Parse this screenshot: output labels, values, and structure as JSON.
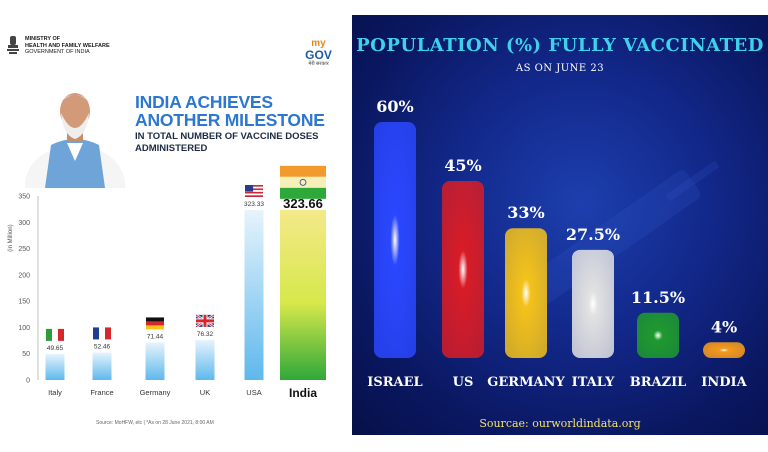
{
  "left": {
    "ministry_lines": [
      "MINISTRY OF",
      "HEALTH AND FAMILY WELFARE",
      "GOVERNMENT OF INDIA"
    ],
    "logo": {
      "top": "my",
      "bottom": "GOV",
      "hindi": "मेरी सरकार"
    },
    "headline": "INDIA ACHIEVES ANOTHER MILESTONE",
    "subline": "IN TOTAL NUMBER OF VACCINE DOSES ADMINISTERED",
    "footer": "Source: MoHFW, etc   |   *As on 28 June 2021, 8:00 AM"
  },
  "right": {
    "title": "POPULATION (%) FULLY VACCINATED",
    "subtitle": "AS ON JUNE 23",
    "source": "Sourcae: ourworldindata.org"
  },
  "chart_data": [
    {
      "type": "bar",
      "title": "INDIA ACHIEVES ANOTHER MILESTONE",
      "ylabel": "(in Million)",
      "ylim": [
        0,
        350
      ],
      "yticks": [
        0,
        50,
        100,
        150,
        200,
        250,
        300,
        350
      ],
      "categories": [
        "Italy",
        "France",
        "Germany",
        "UK",
        "USA",
        "India"
      ],
      "values": [
        49.65,
        52.46,
        71.44,
        76.32,
        323.33,
        323.66
      ],
      "value_labels": [
        "49.65",
        "52.46",
        "71.44",
        "76.32",
        "323.33",
        "323.66"
      ],
      "highlight": "India",
      "colors": {
        "bar": "#5fb8ec",
        "india_top": "#f39a2c",
        "india_mid": "#f6f0b8",
        "india_bottom": "#2fa83a"
      }
    },
    {
      "type": "bar",
      "title": "POPULATION (%) FULLY VACCINATED",
      "subtitle": "AS ON JUNE 23",
      "ylim": [
        0,
        60
      ],
      "categories": [
        "ISRAEL",
        "US",
        "GERMANY",
        "ITALY",
        "BRAZIL",
        "INDIA"
      ],
      "values": [
        60,
        45,
        33,
        27.5,
        11.5,
        4
      ],
      "value_labels": [
        "60%",
        "45%",
        "33%",
        "27.5%",
        "11.5%",
        "4%"
      ],
      "colors": [
        "#2a47ff",
        "#d81c26",
        "#f4c21a",
        "#e2e2e2",
        "#1f9a2e",
        "#f49a1c"
      ]
    }
  ]
}
